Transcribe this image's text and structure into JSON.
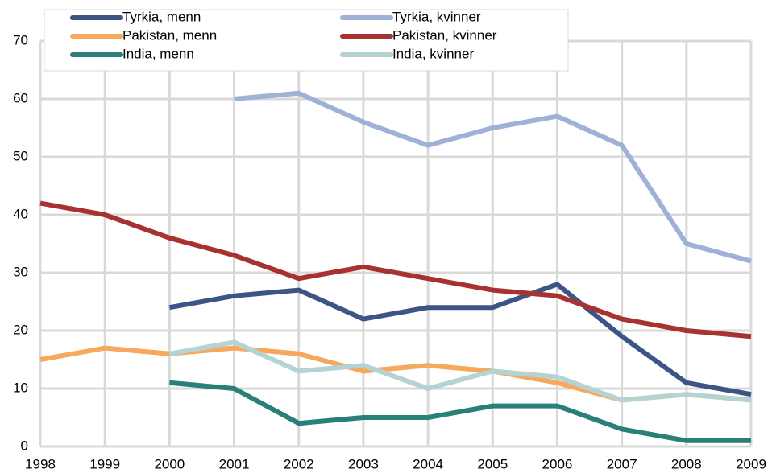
{
  "chart_data": {
    "type": "line",
    "x": [
      1998,
      1999,
      2000,
      2001,
      2002,
      2003,
      2004,
      2005,
      2006,
      2007,
      2008,
      2009
    ],
    "series": [
      {
        "name": "Tyrkia, menn",
        "color": "#3d5585",
        "values": [
          null,
          null,
          24,
          26,
          27,
          22,
          24,
          24,
          28,
          19,
          11,
          9
        ]
      },
      {
        "name": "Tyrkia, kvinner",
        "color": "#9fb1d6",
        "values": [
          null,
          null,
          null,
          60,
          61,
          56,
          52,
          55,
          57,
          52,
          35,
          32
        ]
      },
      {
        "name": "Pakistan, menn",
        "color": "#f6a95e",
        "values": [
          15,
          17,
          16,
          17,
          16,
          13,
          14,
          13,
          11,
          8,
          9,
          8
        ]
      },
      {
        "name": "Pakistan, kvinner",
        "color": "#a83232",
        "values": [
          42,
          40,
          36,
          33,
          29,
          31,
          29,
          27,
          26,
          22,
          20,
          19
        ]
      },
      {
        "name": "India, menn",
        "color": "#2a7f78",
        "values": [
          null,
          null,
          11,
          10,
          4,
          5,
          5,
          7,
          7,
          3,
          1,
          1
        ]
      },
      {
        "name": "India, kvinner",
        "color": "#b5d3d3",
        "values": [
          null,
          null,
          16,
          18,
          13,
          14,
          10,
          13,
          12,
          8,
          9,
          8
        ]
      }
    ],
    "xlim": [
      1998,
      2009
    ],
    "xticks": [
      1998,
      1999,
      2000,
      2001,
      2002,
      2003,
      2004,
      2005,
      2006,
      2007,
      2008,
      2009
    ],
    "ylim": [
      0,
      70
    ],
    "yticks": [
      0,
      10,
      20,
      30,
      40,
      50,
      60,
      70
    ],
    "grid": true
  }
}
